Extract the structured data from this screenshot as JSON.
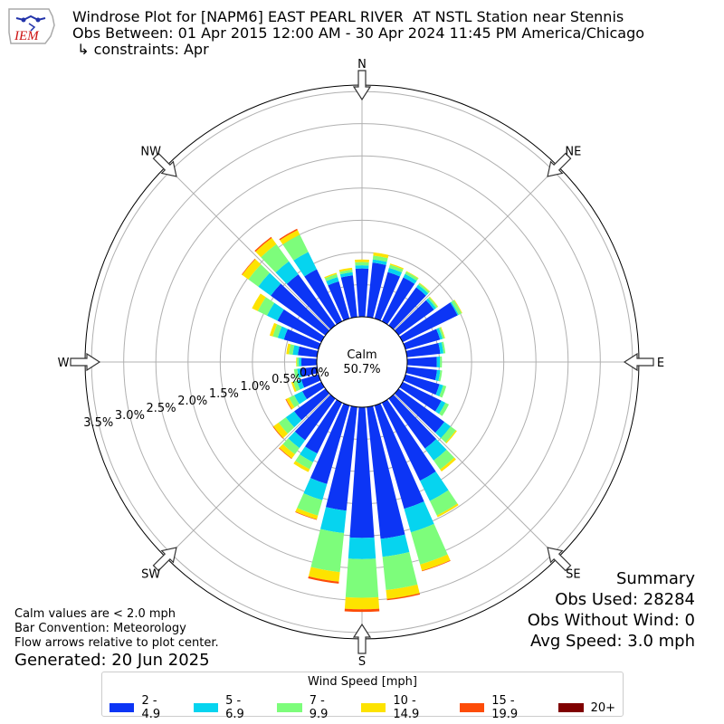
{
  "header": {
    "title_line1": "Windrose Plot for [NAPM6] EAST PEARL RIVER  AT NSTL Station near Stennis",
    "title_line2": "Obs Between: 01 Apr 2015 12:00 AM - 30 Apr 2024 11:45 PM America/Chicago",
    "title_line3": " ↳ constraints: Apr",
    "logo_text": "IEM"
  },
  "summary": {
    "heading": "Summary",
    "obs_used": "Obs Used: 28284",
    "obs_without_wind": "Obs Without Wind: 0",
    "avg_speed": "Avg Speed: 3.0 mph"
  },
  "notes": {
    "calm_note": "Calm values are < 2.0 mph",
    "bar_convention": "Bar Convention: Meteorology",
    "flow_arrows": "Flow arrows relative to plot center.",
    "generated": "Generated: 20 Jun 2025"
  },
  "legend": {
    "title": "Wind Speed [mph]",
    "items": [
      {
        "label": "2 - 4.9",
        "color": "#0c35f5"
      },
      {
        "label": "5 - 6.9",
        "color": "#06d4ef"
      },
      {
        "label": "7 - 9.9",
        "color": "#7dfd7b"
      },
      {
        "label": "10 - 14.9",
        "color": "#fde300"
      },
      {
        "label": "15 - 19.9",
        "color": "#fd4c08"
      },
      {
        "label": "20+",
        "color": "#7f0000"
      }
    ]
  },
  "chart_data": {
    "type": "windrose",
    "calm_label": "Calm",
    "calm_value": "50.7%",
    "compass_labels": [
      {
        "label": "N",
        "deg": 0
      },
      {
        "label": "NE",
        "deg": 45
      },
      {
        "label": "E",
        "deg": 90
      },
      {
        "label": "SE",
        "deg": 135
      },
      {
        "label": "S",
        "deg": 180
      },
      {
        "label": "SW",
        "deg": 225
      },
      {
        "label": "W",
        "deg": 270
      },
      {
        "label": "NW",
        "deg": 315
      }
    ],
    "radial_ticks": [
      "0.0%",
      "0.5%",
      "1.0%",
      "1.5%",
      "2.0%",
      "2.5%",
      "3.0%",
      "3.5%"
    ],
    "radial_tick_values": [
      0.0,
      0.5,
      1.0,
      1.5,
      2.0,
      2.5,
      3.0,
      3.5
    ],
    "rmax_percent": 3.6,
    "direction_step_deg": 10,
    "speed_bins": [
      "2 - 4.9",
      "5 - 6.9",
      "7 - 9.9",
      "10 - 14.9",
      "15 - 19.9",
      "20+"
    ],
    "bins_colors": [
      "#0c35f5",
      "#06d4ef",
      "#7dfd7b",
      "#fde300",
      "#fd4c08",
      "#7f0000"
    ],
    "directions": [
      {
        "deg": 0,
        "values": [
          0.75,
          0.05,
          0.05,
          0.04,
          0.0,
          0.0
        ]
      },
      {
        "deg": 10,
        "values": [
          0.85,
          0.05,
          0.06,
          0.05,
          0.0,
          0.0
        ]
      },
      {
        "deg": 20,
        "values": [
          0.75,
          0.07,
          0.05,
          0.02,
          0.0,
          0.0
        ]
      },
      {
        "deg": 30,
        "values": [
          0.76,
          0.06,
          0.04,
          0.01,
          0.0,
          0.0
        ]
      },
      {
        "deg": 40,
        "values": [
          0.73,
          0.05,
          0.03,
          0.01,
          0.0,
          0.0
        ]
      },
      {
        "deg": 50,
        "values": [
          0.68,
          0.04,
          0.03,
          0.01,
          0.0,
          0.0
        ]
      },
      {
        "deg": 60,
        "values": [
          0.95,
          0.02,
          0.05,
          0.01,
          0.0,
          0.0
        ]
      },
      {
        "deg": 70,
        "values": [
          0.56,
          0.04,
          0.03,
          0.01,
          0.0,
          0.0
        ]
      },
      {
        "deg": 80,
        "values": [
          0.52,
          0.05,
          0.03,
          0.0,
          0.0,
          0.0
        ]
      },
      {
        "deg": 90,
        "values": [
          0.46,
          0.05,
          0.03,
          0.0,
          0.0,
          0.0
        ]
      },
      {
        "deg": 100,
        "values": [
          0.47,
          0.05,
          0.03,
          0.0,
          0.0,
          0.0
        ]
      },
      {
        "deg": 110,
        "values": [
          0.55,
          0.06,
          0.05,
          0.0,
          0.0,
          0.0
        ]
      },
      {
        "deg": 120,
        "values": [
          0.67,
          0.07,
          0.06,
          0.0,
          0.0,
          0.0
        ]
      },
      {
        "deg": 130,
        "values": [
          0.88,
          0.12,
          0.1,
          0.02,
          0.0,
          0.0
        ]
      },
      {
        "deg": 140,
        "values": [
          0.96,
          0.23,
          0.17,
          0.04,
          0.0,
          0.0
        ]
      },
      {
        "deg": 150,
        "values": [
          1.35,
          0.35,
          0.25,
          0.03,
          0.0,
          0.0
        ]
      },
      {
        "deg": 160,
        "values": [
          1.67,
          0.38,
          0.52,
          0.1,
          0.01,
          0.0
        ]
      },
      {
        "deg": 170,
        "values": [
          2.06,
          0.28,
          0.52,
          0.14,
          0.02,
          0.0
        ]
      },
      {
        "deg": 180,
        "values": [
          2.03,
          0.33,
          0.6,
          0.18,
          0.04,
          0.0
        ]
      },
      {
        "deg": 190,
        "values": [
          1.62,
          0.35,
          0.61,
          0.15,
          0.03,
          0.0
        ]
      },
      {
        "deg": 200,
        "values": [
          1.27,
          0.26,
          0.25,
          0.06,
          0.01,
          0.0
        ]
      },
      {
        "deg": 210,
        "values": [
          0.88,
          0.15,
          0.12,
          0.05,
          0.0,
          0.0
        ]
      },
      {
        "deg": 220,
        "values": [
          0.8,
          0.15,
          0.12,
          0.08,
          0.01,
          0.0
        ]
      },
      {
        "deg": 230,
        "values": [
          0.6,
          0.16,
          0.14,
          0.1,
          0.01,
          0.0
        ]
      },
      {
        "deg": 240,
        "values": [
          0.33,
          0.14,
          0.09,
          0.05,
          0.01,
          0.0
        ]
      },
      {
        "deg": 250,
        "values": [
          0.28,
          0.07,
          0.06,
          0.03,
          0.0,
          0.0
        ]
      },
      {
        "deg": 260,
        "values": [
          0.25,
          0.06,
          0.05,
          0.0,
          0.0,
          0.0
        ]
      },
      {
        "deg": 270,
        "values": [
          0.24,
          0.04,
          0.03,
          0.01,
          0.0,
          0.0
        ]
      },
      {
        "deg": 280,
        "values": [
          0.3,
          0.08,
          0.06,
          0.04,
          0.0,
          0.0
        ]
      },
      {
        "deg": 290,
        "values": [
          0.56,
          0.1,
          0.08,
          0.05,
          0.0,
          0.0
        ]
      },
      {
        "deg": 300,
        "values": [
          0.76,
          0.18,
          0.16,
          0.1,
          0.0,
          0.0
        ]
      },
      {
        "deg": 310,
        "values": [
          1.05,
          0.24,
          0.19,
          0.12,
          0.01,
          0.0
        ]
      },
      {
        "deg": 320,
        "values": [
          0.98,
          0.25,
          0.33,
          0.12,
          0.02,
          0.0
        ]
      },
      {
        "deg": 330,
        "values": [
          0.9,
          0.3,
          0.3,
          0.08,
          0.02,
          0.0
        ]
      },
      {
        "deg": 340,
        "values": [
          0.6,
          0.07,
          0.05,
          0.02,
          0.0,
          0.0
        ]
      },
      {
        "deg": 350,
        "values": [
          0.65,
          0.05,
          0.04,
          0.03,
          0.0,
          0.0
        ]
      }
    ]
  }
}
